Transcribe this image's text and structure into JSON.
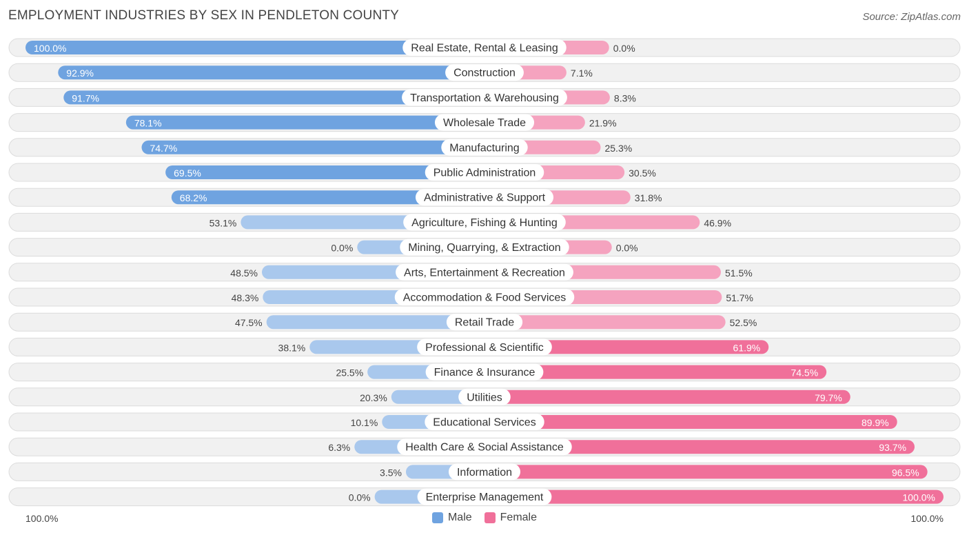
{
  "title": "EMPLOYMENT INDUSTRIES BY SEX IN PENDLETON COUNTY",
  "source": "Source: ZipAtlas.com",
  "axis": {
    "left_label": "100.0%",
    "right_label": "100.0%"
  },
  "legend": {
    "male": "Male",
    "female": "Female"
  },
  "colors": {
    "male_dark": "#6fa3e0",
    "male_light": "#a9c8ed",
    "female_dark": "#f0709a",
    "female_light": "#f5a3bf"
  },
  "chart_data": {
    "type": "bar",
    "orientation": "horizontal-diverging",
    "title": "EMPLOYMENT INDUSTRIES BY SEX IN PENDLETON COUNTY",
    "xlim": [
      -100,
      100
    ],
    "categories": [
      "Real Estate, Rental & Leasing",
      "Construction",
      "Transportation & Warehousing",
      "Wholesale Trade",
      "Manufacturing",
      "Public Administration",
      "Administrative & Support",
      "Agriculture, Fishing & Hunting",
      "Mining, Quarrying, & Extraction",
      "Arts, Entertainment & Recreation",
      "Accommodation & Food Services",
      "Retail Trade",
      "Professional & Scientific",
      "Finance & Insurance",
      "Utilities",
      "Educational Services",
      "Health Care & Social Assistance",
      "Information",
      "Enterprise Management"
    ],
    "series": [
      {
        "name": "Male",
        "values": [
          100.0,
          92.9,
          91.7,
          78.1,
          74.7,
          69.5,
          68.2,
          53.1,
          0.0,
          48.5,
          48.3,
          47.5,
          38.1,
          25.5,
          20.3,
          10.1,
          6.3,
          3.5,
          0.0
        ],
        "labels": [
          "100.0%",
          "92.9%",
          "91.7%",
          "78.1%",
          "74.7%",
          "69.5%",
          "68.2%",
          "53.1%",
          "0.0%",
          "48.5%",
          "48.3%",
          "47.5%",
          "38.1%",
          "25.5%",
          "20.3%",
          "10.1%",
          "6.3%",
          "3.5%",
          "0.0%"
        ]
      },
      {
        "name": "Female",
        "values": [
          0.0,
          7.1,
          8.3,
          21.9,
          25.3,
          30.5,
          31.8,
          46.9,
          0.0,
          51.5,
          51.7,
          52.5,
          61.9,
          74.5,
          79.7,
          89.9,
          93.7,
          96.5,
          100.0
        ],
        "labels": [
          "0.0%",
          "7.1%",
          "8.3%",
          "21.9%",
          "25.3%",
          "30.5%",
          "31.8%",
          "46.9%",
          "0.0%",
          "51.5%",
          "51.7%",
          "52.5%",
          "61.9%",
          "74.5%",
          "79.7%",
          "89.9%",
          "93.7%",
          "96.5%",
          "100.0%"
        ]
      }
    ]
  }
}
